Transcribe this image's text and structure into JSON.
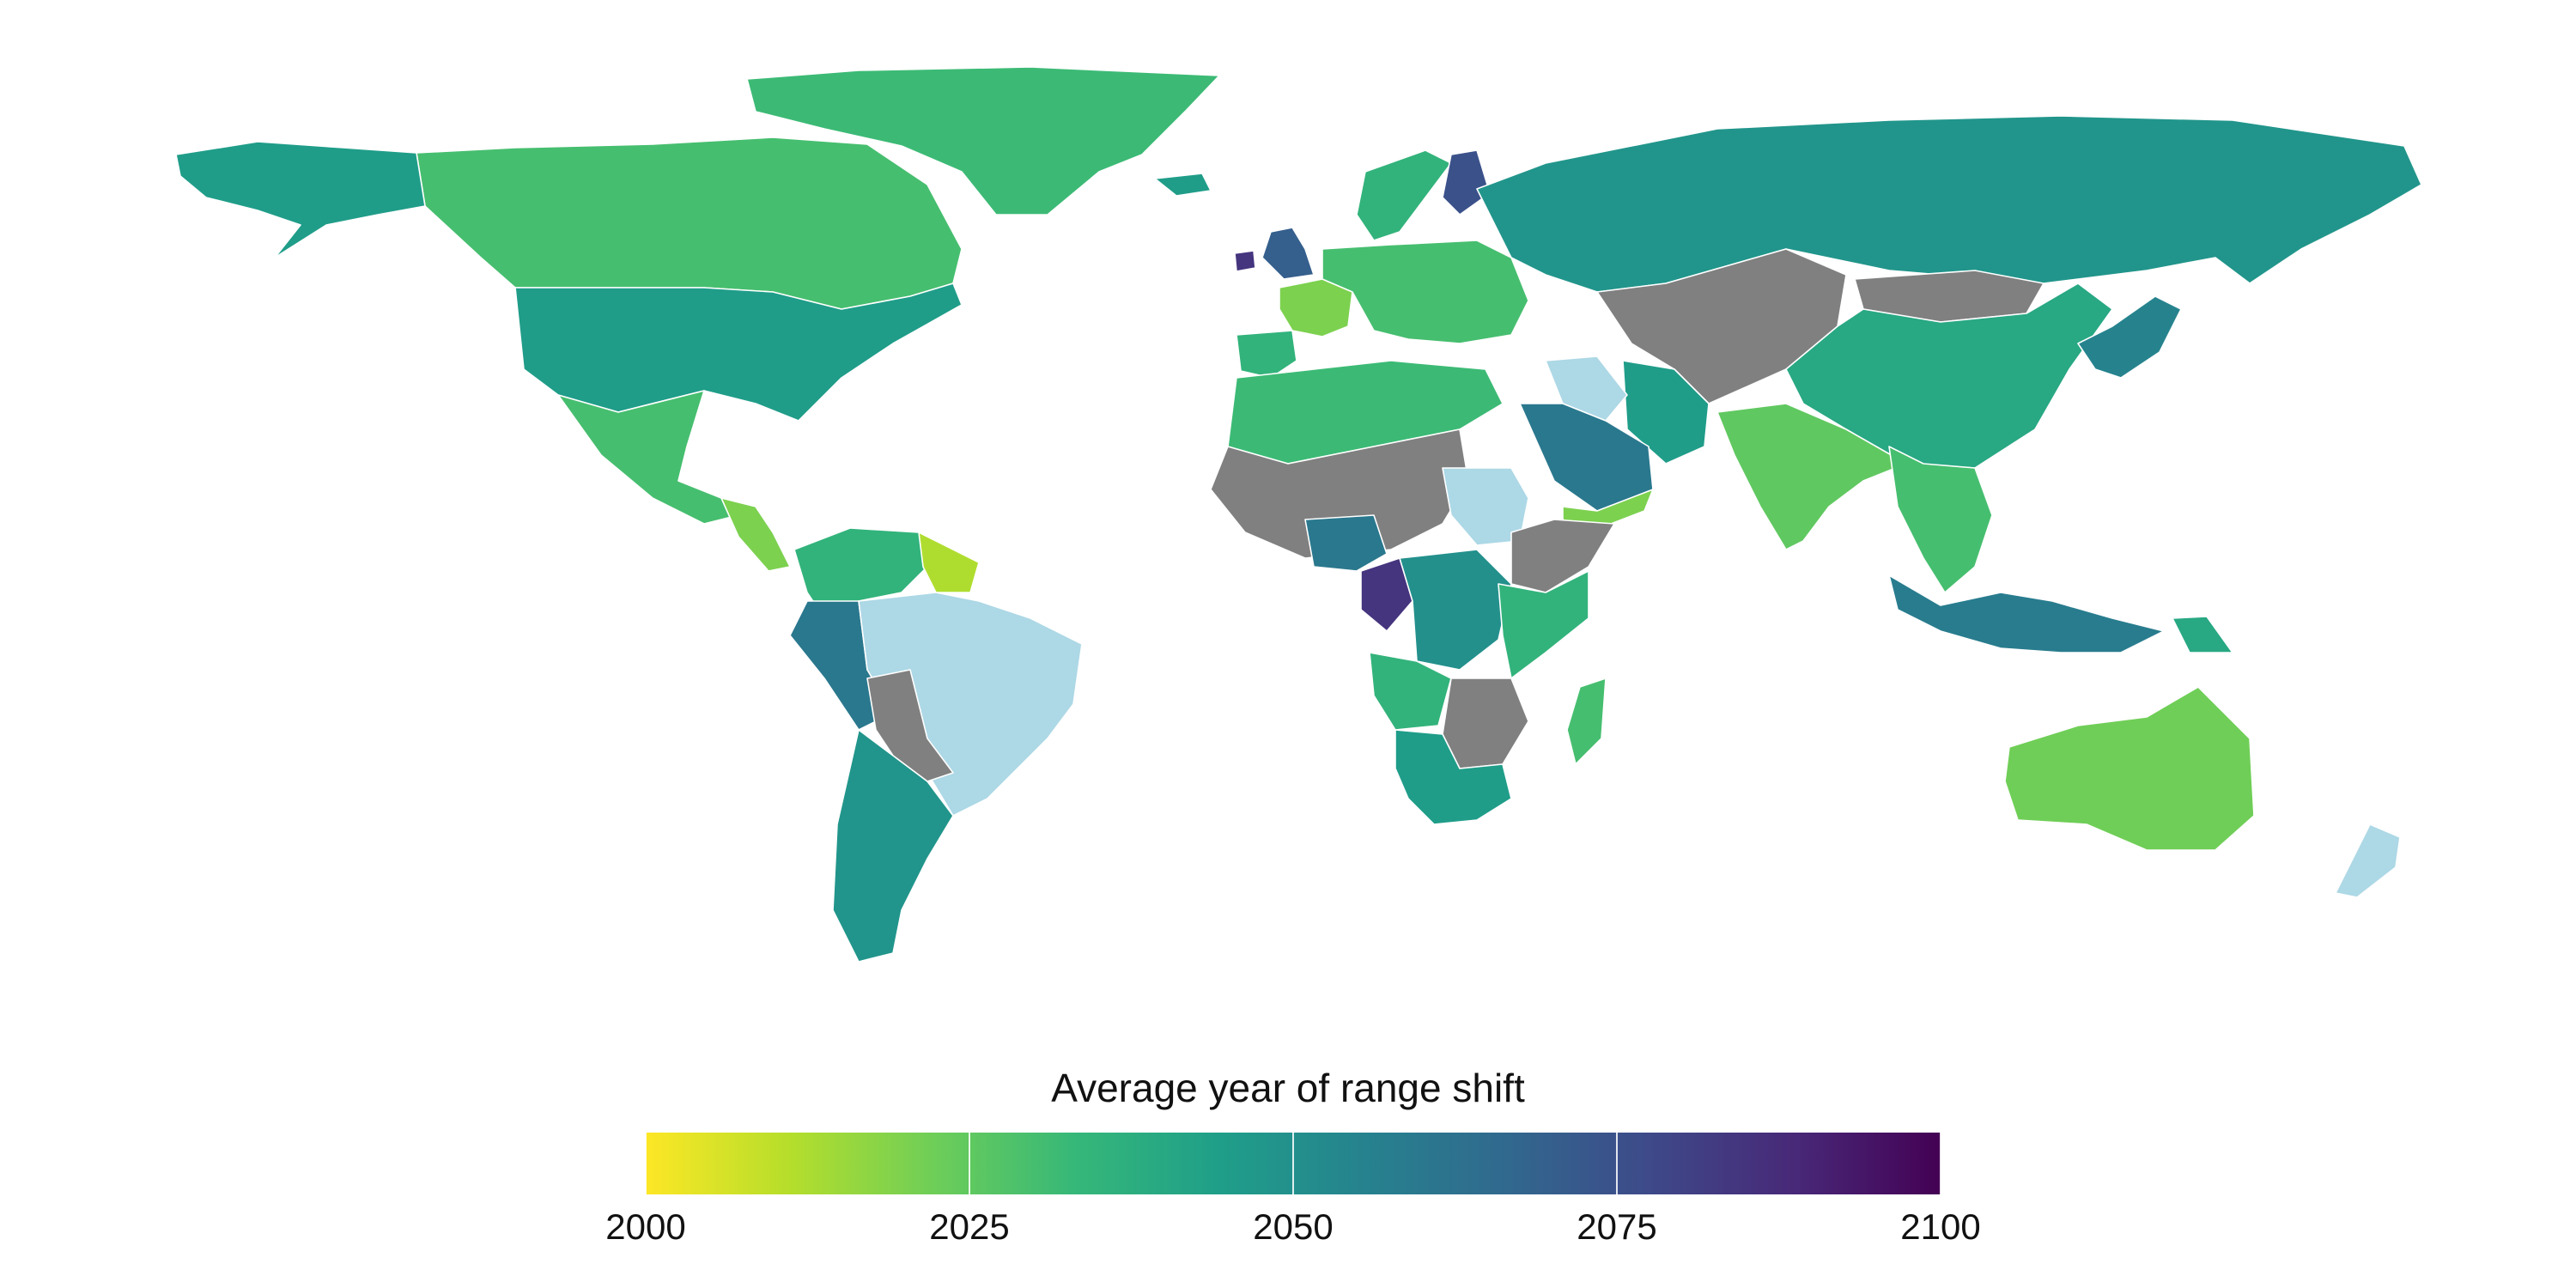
{
  "legend": {
    "title": "Average year of range shift",
    "min": 2000,
    "max": 2100,
    "ticks": [
      "2000",
      "2025",
      "2050",
      "2075",
      "2100"
    ],
    "colormap": [
      "#fde725",
      "#b5de2b",
      "#6ece58",
      "#35b779",
      "#1f9e89",
      "#26828e",
      "#31688e",
      "#3e4989",
      "#482878",
      "#440154"
    ]
  },
  "colors": {
    "no_data": "#808080",
    "ocean": "#ffffff",
    "border": "#ffffff",
    "special": "#add8e6"
  },
  "chart_data": {
    "type": "choropleth",
    "value_range": [
      2000,
      2100
    ],
    "regions": [
      {
        "region": "Canada",
        "year": 2030
      },
      {
        "region": "Alaska",
        "year": 2045
      },
      {
        "region": "Greenland",
        "year": 2032
      },
      {
        "region": "Iceland",
        "year": 2045
      },
      {
        "region": "United States",
        "year": 2045
      },
      {
        "region": "Mexico",
        "year": 2030
      },
      {
        "region": "Central America",
        "year": 2020
      },
      {
        "region": "Venezuela/Colombia",
        "year": 2035
      },
      {
        "region": "Guyana/Suriname",
        "year": 2012
      },
      {
        "region": "Peru/Ecuador",
        "year": 2060
      },
      {
        "region": "Brazil",
        "value": "special"
      },
      {
        "region": "Bolivia/Paraguay",
        "value": "no data"
      },
      {
        "region": "Argentina/Chile",
        "year": 2048
      },
      {
        "region": "United Kingdom",
        "year": 2070
      },
      {
        "region": "Ireland",
        "year": 2085
      },
      {
        "region": "France",
        "year": 2020
      },
      {
        "region": "Iberia",
        "year": 2035
      },
      {
        "region": "Scandinavia",
        "year": 2035
      },
      {
        "region": "Finland",
        "year": 2075
      },
      {
        "region": "Central Europe",
        "year": 2030
      },
      {
        "region": "Russia",
        "year": 2048
      },
      {
        "region": "Kazakhstan/Central Asia",
        "value": "no data"
      },
      {
        "region": "Mongolia",
        "value": "no data"
      },
      {
        "region": "China",
        "year": 2040
      },
      {
        "region": "Japan/Korea",
        "year": 2055
      },
      {
        "region": "India",
        "year": 2025
      },
      {
        "region": "Iran",
        "year": 2045
      },
      {
        "region": "Saudi Arabia",
        "year": 2060
      },
      {
        "region": "Yemen",
        "year": 2020
      },
      {
        "region": "Iraq",
        "value": "special"
      },
      {
        "region": "Southeast Asia",
        "year": 2030
      },
      {
        "region": "Indonesia",
        "year": 2058
      },
      {
        "region": "Papua New Guinea",
        "year": 2040
      },
      {
        "region": "Australia",
        "year": 2022
      },
      {
        "region": "New Zealand",
        "value": "special"
      },
      {
        "region": "North Africa",
        "year": 2032
      },
      {
        "region": "Sahel",
        "value": "no data"
      },
      {
        "region": "Sudan",
        "value": "special"
      },
      {
        "region": "Ethiopia/Horn",
        "value": "no data"
      },
      {
        "region": "Nigeria",
        "year": 2060
      },
      {
        "region": "Gabon/Congo",
        "year": 2085
      },
      {
        "region": "DR Congo",
        "year": 2050
      },
      {
        "region": "East Africa",
        "year": 2035
      },
      {
        "region": "Angola",
        "year": 2035
      },
      {
        "region": "Zambia/Zimbabwe",
        "value": "no data"
      },
      {
        "region": "Southern Africa",
        "year": 2045
      },
      {
        "region": "Madagascar",
        "year": 2030
      }
    ]
  }
}
